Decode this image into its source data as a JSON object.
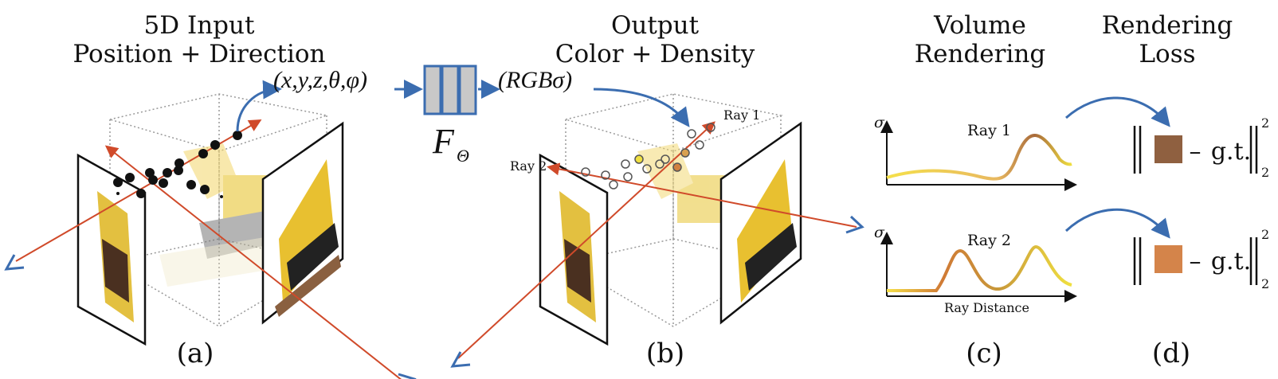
{
  "panels": [
    {
      "title_line1": "5D Input",
      "title_line2": "Position + Direction",
      "label": "(a)"
    },
    {
      "title_line1": "Output",
      "title_line2": "Color + Density",
      "label": "(b)"
    },
    {
      "title_line1": "Volume",
      "title_line2": "Rendering",
      "label": "(c)"
    },
    {
      "title_line1": "Rendering",
      "title_line2": "Loss",
      "label": "(d)"
    }
  ],
  "input_tuple": "(x,y,z,θ,φ)",
  "network": {
    "symbol": "F",
    "subscript": "Θ"
  },
  "output_tuple": "(RGBσ)",
  "ray_labels": [
    "Ray 1",
    "Ray 2"
  ],
  "chart": {
    "y_axis": "σ",
    "x_axis": "Ray Distance"
  },
  "loss": {
    "term": "g.t.",
    "sup": "2",
    "sub": "2",
    "minus": "–"
  },
  "colors": {
    "ray": "#d04a2a",
    "arrow": "#3b6db0",
    "ray1_color": "#8f6040",
    "ray2_color": "#d4844a",
    "network_fill": "#c8c8c8"
  }
}
